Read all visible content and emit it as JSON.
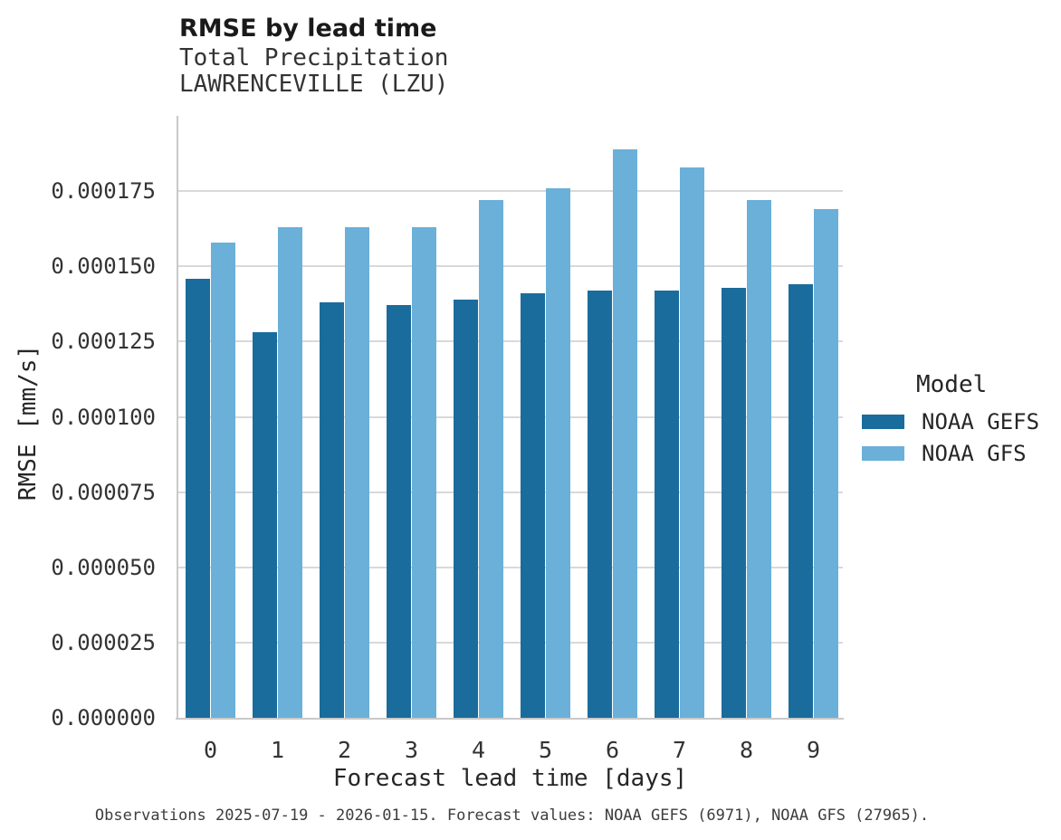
{
  "header": {
    "title": "RMSE by lead time",
    "subtitle_line1": "Total Precipitation",
    "subtitle_line2": "LAWRENCEVILLE (LZU)"
  },
  "chart_data": {
    "type": "bar",
    "grouped": true,
    "title": "RMSE by lead time",
    "subtitle": [
      "Total Precipitation",
      "LAWRENCEVILLE (LZU)"
    ],
    "categories": [
      "0",
      "1",
      "2",
      "3",
      "4",
      "5",
      "6",
      "7",
      "8",
      "9"
    ],
    "series": [
      {
        "name": "NOAA GEFS",
        "color": "#1a6c9c",
        "values": [
          0.000146,
          0.000128,
          0.000138,
          0.000137,
          0.000139,
          0.000141,
          0.000142,
          0.000142,
          0.000143,
          0.000144
        ]
      },
      {
        "name": "NOAA GFS",
        "color": "#6ab0d9",
        "values": [
          0.000158,
          0.000163,
          0.000163,
          0.000163,
          0.000172,
          0.000176,
          0.000189,
          0.000183,
          0.000172,
          0.000169
        ]
      }
    ],
    "xlabel": "Forecast lead time [days]",
    "ylabel": "RMSE [mm/s]",
    "ylim": [
      0,
      0.0002
    ],
    "yticks": [
      0,
      2.5e-05,
      5e-05,
      7.5e-05,
      0.0001,
      0.000125,
      0.00015,
      0.000175
    ],
    "ytick_decimals": 6,
    "grid": "horizontal",
    "legend_title": "Model",
    "legend_position": "right"
  },
  "caption": "Observations 2025-07-19 - 2026-01-15. Forecast values: NOAA GEFS (6971), NOAA GFS (27965)."
}
